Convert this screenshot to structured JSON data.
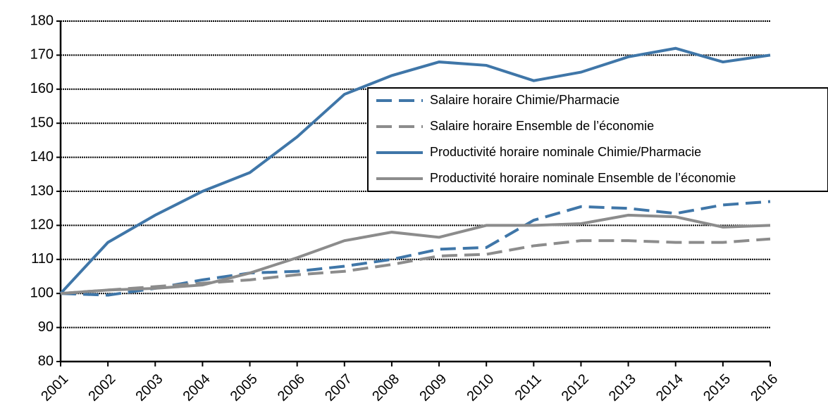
{
  "chart_data": {
    "type": "line",
    "categories": [
      "2001",
      "2002",
      "2003",
      "2004",
      "2005",
      "2006",
      "2007",
      "2008",
      "2009",
      "2010",
      "2011",
      "2012",
      "2013",
      "2014",
      "2015",
      "2016"
    ],
    "series": [
      {
        "name": "Salaire horaire Chimie/Pharmacie",
        "color": "#3f76a8",
        "dash": true,
        "values": [
          100,
          99.5,
          101.5,
          104,
          106,
          106.5,
          108,
          110,
          113,
          113.5,
          121.5,
          125.5,
          125,
          123.5,
          126,
          127
        ]
      },
      {
        "name": "Salaire horaire Ensemble de l’économie",
        "color": "#8c8c8c",
        "dash": true,
        "values": [
          100,
          101,
          102,
          103,
          104,
          105.5,
          106.5,
          108.5,
          111,
          111.5,
          114,
          115.5,
          115.5,
          115,
          115,
          116
        ]
      },
      {
        "name": "Productivité horaire nominale Chimie/Pharmacie",
        "color": "#3f76a8",
        "dash": false,
        "values": [
          100,
          115,
          123,
          130,
          135.5,
          146,
          158.5,
          164,
          168,
          167,
          162.5,
          165,
          169.5,
          172,
          168,
          170
        ]
      },
      {
        "name": "Productivité horaire nominale Ensemble de l’économie",
        "color": "#8c8c8c",
        "dash": false,
        "values": [
          100,
          101,
          101.5,
          102.5,
          106,
          110.5,
          115.5,
          118,
          116.5,
          120,
          120,
          120.5,
          123,
          122.5,
          119.5,
          120
        ]
      }
    ],
    "ylim": [
      80,
      180
    ],
    "yticks": [
      80,
      90,
      100,
      110,
      120,
      130,
      140,
      150,
      160,
      170,
      180
    ],
    "grid": true,
    "legend": "right"
  }
}
